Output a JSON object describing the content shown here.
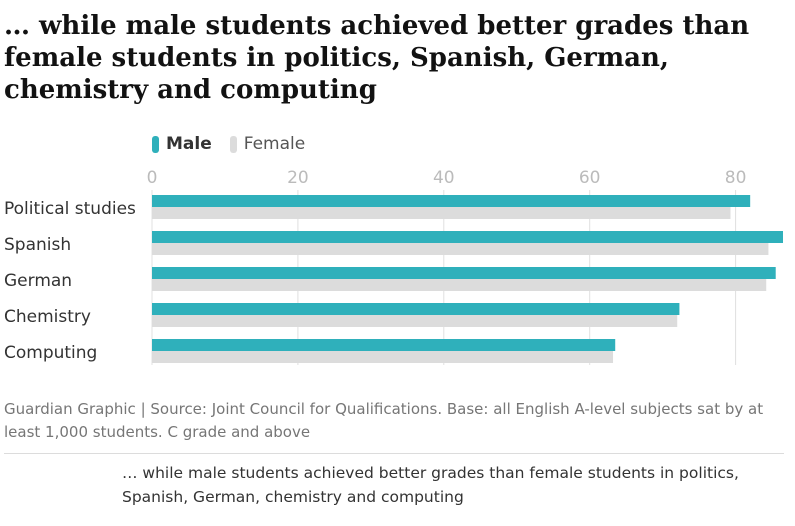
{
  "title": "… while male students achieved better grades than female students in politics, Spanish, German, chemistry and computing",
  "caption": "Guardian Graphic | Source: Joint Council for Qualifications. Base: all English A-level subjects sat by at least 1,000 students. C grade and above",
  "sub_caption": "… while male students achieved better grades than female students in politics, Spanish, German, chemistry and computing",
  "colors": {
    "male": "#2fb0bb",
    "female": "#dcdcdc",
    "grid": "#e0e0e0",
    "tick": "#bbbbbb",
    "label": "#333333"
  },
  "chart_data": {
    "type": "bar",
    "orientation": "horizontal",
    "categories": [
      "Political studies",
      "Spanish",
      "German",
      "Chemistry",
      "Computing"
    ],
    "series": [
      {
        "name": "Male",
        "values": [
          82,
          86.5,
          85.5,
          72.3,
          63.5
        ]
      },
      {
        "name": "Female",
        "values": [
          79.3,
          84.5,
          84.2,
          72.0,
          63.2
        ]
      }
    ],
    "xticks": [
      0,
      20,
      40,
      60,
      80
    ],
    "xlim": [
      0,
      86.5
    ],
    "legend_position": "top-left",
    "grid": true
  }
}
